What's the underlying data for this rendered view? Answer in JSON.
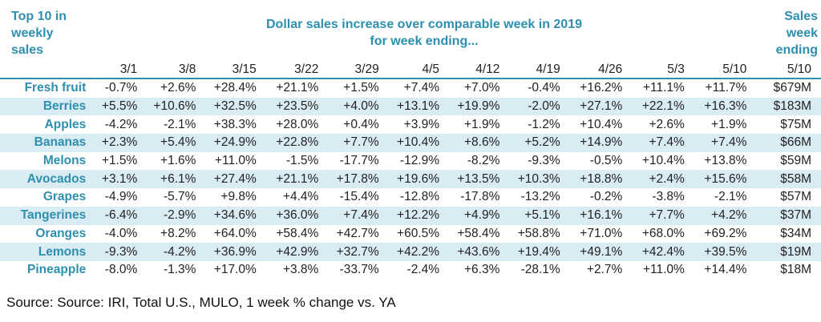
{
  "headers": {
    "left": [
      "Top 10 in",
      "weekly",
      "sales"
    ],
    "center": [
      "Dollar sales increase over comparable week in 2019",
      "for week ending..."
    ],
    "right": [
      "Sales",
      "week",
      "ending"
    ]
  },
  "chart_data": {
    "type": "table",
    "columns": [
      "3/1",
      "3/8",
      "3/15",
      "3/22",
      "3/29",
      "4/5",
      "4/12",
      "4/19",
      "4/26",
      "5/3",
      "5/10",
      "5/10"
    ],
    "rows": [
      {
        "name": "Fresh fruit",
        "values": [
          "-0.7%",
          "+2.6%",
          "+28.4%",
          "+21.1%",
          "+1.5%",
          "+7.4%",
          "+7.0%",
          "-0.4%",
          "+16.2%",
          "+11.1%",
          "+11.7%"
        ],
        "sales": "$679M"
      },
      {
        "name": "Berries",
        "values": [
          "+5.5%",
          "+10.6%",
          "+32.5%",
          "+23.5%",
          "+4.0%",
          "+13.1%",
          "+19.9%",
          "-2.0%",
          "+27.1%",
          "+22.1%",
          "+16.3%"
        ],
        "sales": "$183M"
      },
      {
        "name": "Apples",
        "values": [
          "-4.2%",
          "-2.1%",
          "+38.3%",
          "+28.0%",
          "+0.4%",
          "+3.9%",
          "+1.9%",
          "-1.2%",
          "+10.4%",
          "+2.6%",
          "+1.9%"
        ],
        "sales": "$75M"
      },
      {
        "name": "Bananas",
        "values": [
          "+2.3%",
          "+5.4%",
          "+24.9%",
          "+22.8%",
          "+7.7%",
          "+10.4%",
          "+8.6%",
          "+5.2%",
          "+14.9%",
          "+7.4%",
          "+7.4%"
        ],
        "sales": "$66M"
      },
      {
        "name": "Melons",
        "values": [
          "+1.5%",
          "+1.6%",
          "+11.0%",
          "-1.5%",
          "-17.7%",
          "-12.9%",
          "-8.2%",
          "-9.3%",
          "-0.5%",
          "+10.4%",
          "+13.8%"
        ],
        "sales": "$59M"
      },
      {
        "name": "Avocados",
        "values": [
          "+3.1%",
          "+6.1%",
          "+27.4%",
          "+21.1%",
          "+17.8%",
          "+19.6%",
          "+13.5%",
          "+10.3%",
          "+18.8%",
          "+2.4%",
          "+15.6%"
        ],
        "sales": "$58M"
      },
      {
        "name": "Grapes",
        "values": [
          "-4.9%",
          "-5.7%",
          "+9.8%",
          "+4.4%",
          "-15.4%",
          "-12.8%",
          "-17.8%",
          "-13.2%",
          "-0.2%",
          "-3.8%",
          "-2.1%"
        ],
        "sales": "$57M"
      },
      {
        "name": "Tangerines",
        "values": [
          "-6.4%",
          "-2.9%",
          "+34.6%",
          "+36.0%",
          "+7.4%",
          "+12.2%",
          "+4.9%",
          "+5.1%",
          "+16.1%",
          "+7.7%",
          "+4.2%"
        ],
        "sales": "$37M"
      },
      {
        "name": "Oranges",
        "values": [
          "-4.0%",
          "+8.2%",
          "+64.0%",
          "+58.4%",
          "+42.7%",
          "+60.5%",
          "+58.4%",
          "+58.8%",
          "+71.0%",
          "+68.0%",
          "+69.2%"
        ],
        "sales": "$34M"
      },
      {
        "name": "Lemons",
        "values": [
          "-9.3%",
          "-4.2%",
          "+36.9%",
          "+42.9%",
          "+32.7%",
          "+42.2%",
          "+43.6%",
          "+19.4%",
          "+49.1%",
          "+42.4%",
          "+39.5%"
        ],
        "sales": "$19M"
      },
      {
        "name": "Pineapple",
        "values": [
          "-8.0%",
          "-1.3%",
          "+17.0%",
          "+3.8%",
          "-33.7%",
          "-2.4%",
          "+6.3%",
          "-28.1%",
          "+2.7%",
          "+11.0%",
          "+14.4%"
        ],
        "sales": "$18M"
      }
    ]
  },
  "source": "Source: Source: IRI, Total U.S., MULO, 1 week % change vs. YA",
  "colors": {
    "accent": "#2e8fae",
    "band": "#d9ecf4"
  }
}
